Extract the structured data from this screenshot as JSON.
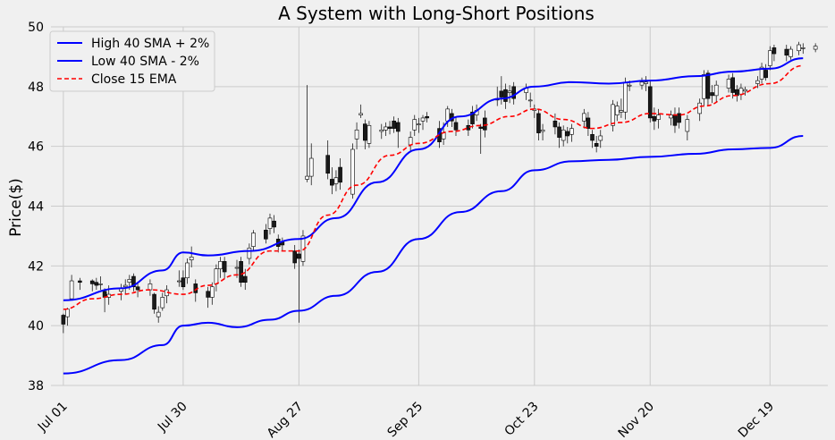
{
  "chart_data": {
    "type": "candlestick",
    "title": "A System with Long-Short Positions",
    "xlabel": "",
    "ylabel": "Price($)",
    "ylim": [
      38,
      50
    ],
    "yticks": [
      38,
      40,
      42,
      44,
      46,
      48,
      50
    ],
    "xlim": [
      "Jun 28",
      "Jan 02"
    ],
    "xticks": [
      "Jul 01",
      "Jul 30",
      "Aug 27",
      "Sep 25",
      "Oct 23",
      "Nov 20",
      "Dec 19"
    ],
    "xtick_dates": [
      "2019-07-01",
      "2019-07-30",
      "2019-08-27",
      "2019-09-25",
      "2019-10-23",
      "2019-11-20",
      "2019-12-19"
    ],
    "grid": true,
    "legend": {
      "placement": "top-left"
    },
    "colors": {
      "high_sma": "#0000ff",
      "low_sma": "#0000ff",
      "ema": "#ff0000",
      "down": "#1a1a1a",
      "up": "#ffffff",
      "grid": "#cbcbcb",
      "background": "#f0f0f0"
    },
    "series": [
      {
        "name": "High 40 SMA + 2%",
        "style": "solid",
        "points": [
          [
            "2019-07-01",
            40.85
          ],
          [
            "2019-07-15",
            41.25
          ],
          [
            "2019-07-25",
            41.85
          ],
          [
            "2019-07-30",
            42.45
          ],
          [
            "2019-08-05",
            42.35
          ],
          [
            "2019-08-15",
            42.5
          ],
          [
            "2019-08-27",
            42.9
          ],
          [
            "2019-09-05",
            43.6
          ],
          [
            "2019-09-15",
            44.8
          ],
          [
            "2019-09-25",
            45.9
          ],
          [
            "2019-10-05",
            47.0
          ],
          [
            "2019-10-15",
            47.6
          ],
          [
            "2019-10-23",
            48.0
          ],
          [
            "2019-11-01",
            48.15
          ],
          [
            "2019-11-10",
            48.1
          ],
          [
            "2019-11-20",
            48.2
          ],
          [
            "2019-12-01",
            48.35
          ],
          [
            "2019-12-10",
            48.5
          ],
          [
            "2019-12-19",
            48.6
          ],
          [
            "2019-12-27",
            48.95
          ]
        ]
      },
      {
        "name": "Low 40 SMA - 2%",
        "style": "solid",
        "points": [
          [
            "2019-07-01",
            38.4
          ],
          [
            "2019-07-15",
            38.85
          ],
          [
            "2019-07-25",
            39.35
          ],
          [
            "2019-07-30",
            40.0
          ],
          [
            "2019-08-05",
            40.1
          ],
          [
            "2019-08-12",
            39.95
          ],
          [
            "2019-08-20",
            40.2
          ],
          [
            "2019-08-27",
            40.5
          ],
          [
            "2019-09-05",
            41.0
          ],
          [
            "2019-09-15",
            41.8
          ],
          [
            "2019-09-25",
            42.9
          ],
          [
            "2019-10-05",
            43.8
          ],
          [
            "2019-10-15",
            44.5
          ],
          [
            "2019-10-23",
            45.2
          ],
          [
            "2019-11-01",
            45.5
          ],
          [
            "2019-11-10",
            45.55
          ],
          [
            "2019-11-20",
            45.65
          ],
          [
            "2019-12-01",
            45.75
          ],
          [
            "2019-12-10",
            45.9
          ],
          [
            "2019-12-19",
            45.95
          ],
          [
            "2019-12-27",
            46.35
          ]
        ]
      },
      {
        "name": "Close 15 EMA",
        "style": "dashed",
        "points": [
          [
            "2019-07-01",
            40.55
          ],
          [
            "2019-07-08",
            40.9
          ],
          [
            "2019-07-15",
            41.05
          ],
          [
            "2019-07-22",
            41.2
          ],
          [
            "2019-07-30",
            41.05
          ],
          [
            "2019-08-05",
            41.35
          ],
          [
            "2019-08-12",
            41.7
          ],
          [
            "2019-08-20",
            42.5
          ],
          [
            "2019-08-27",
            42.5
          ],
          [
            "2019-09-03",
            43.7
          ],
          [
            "2019-09-10",
            44.7
          ],
          [
            "2019-09-18",
            45.7
          ],
          [
            "2019-09-25",
            46.1
          ],
          [
            "2019-10-03",
            46.5
          ],
          [
            "2019-10-10",
            46.7
          ],
          [
            "2019-10-17",
            47.0
          ],
          [
            "2019-10-23",
            47.25
          ],
          [
            "2019-10-30",
            46.9
          ],
          [
            "2019-11-06",
            46.6
          ],
          [
            "2019-11-13",
            46.8
          ],
          [
            "2019-11-20",
            47.1
          ],
          [
            "2019-11-27",
            47.05
          ],
          [
            "2019-12-03",
            47.35
          ],
          [
            "2019-12-10",
            47.7
          ],
          [
            "2019-12-19",
            48.1
          ],
          [
            "2019-12-27",
            48.7
          ]
        ]
      }
    ],
    "candles": [
      [
        "2019-07-01",
        40.35,
        40.05,
        40.4,
        39.75
      ],
      [
        "2019-07-02",
        40.3,
        40.55,
        40.6,
        40.0
      ],
      [
        "2019-07-03",
        40.9,
        41.5,
        41.7,
        40.85
      ],
      [
        "2019-07-05",
        41.5,
        41.45,
        41.6,
        41.2
      ],
      [
        "2019-07-08",
        41.5,
        41.4,
        41.55,
        41.15
      ],
      [
        "2019-07-09",
        41.45,
        41.35,
        41.6,
        41.2
      ],
      [
        "2019-07-10",
        41.4,
        41.4,
        41.65,
        41.2
      ],
      [
        "2019-07-11",
        41.15,
        40.95,
        41.25,
        40.45
      ],
      [
        "2019-07-12",
        40.95,
        41.05,
        41.35,
        40.7
      ],
      [
        "2019-07-15",
        41.15,
        41.25,
        41.4,
        40.85
      ],
      [
        "2019-07-16",
        41.3,
        41.35,
        41.55,
        41.05
      ],
      [
        "2019-07-17",
        41.45,
        41.55,
        41.7,
        41.2
      ],
      [
        "2019-07-18",
        41.65,
        41.3,
        41.75,
        41.15
      ],
      [
        "2019-07-19",
        41.3,
        41.2,
        41.45,
        40.95
      ],
      [
        "2019-07-22",
        41.2,
        41.4,
        41.55,
        41.0
      ],
      [
        "2019-07-23",
        41.05,
        40.55,
        41.1,
        40.4
      ],
      [
        "2019-07-24",
        40.3,
        40.45,
        40.65,
        40.1
      ],
      [
        "2019-07-25",
        40.6,
        40.95,
        41.1,
        40.5
      ],
      [
        "2019-07-26",
        41.0,
        41.2,
        41.35,
        40.75
      ],
      [
        "2019-07-29",
        41.5,
        41.5,
        41.85,
        41.3
      ],
      [
        "2019-07-30",
        41.6,
        41.3,
        41.85,
        41.2
      ],
      [
        "2019-07-31",
        41.6,
        42.1,
        42.25,
        41.4
      ],
      [
        "2019-08-01",
        42.2,
        42.3,
        42.65,
        41.95
      ],
      [
        "2019-08-02",
        41.4,
        41.1,
        41.55,
        40.8
      ],
      [
        "2019-08-05",
        41.15,
        40.95,
        41.3,
        40.6
      ],
      [
        "2019-08-06",
        40.95,
        41.3,
        41.45,
        40.7
      ],
      [
        "2019-08-07",
        41.4,
        41.9,
        42.05,
        41.15
      ],
      [
        "2019-08-08",
        41.9,
        42.15,
        42.3,
        41.6
      ],
      [
        "2019-08-09",
        42.15,
        41.8,
        42.3,
        41.55
      ],
      [
        "2019-08-12",
        41.95,
        41.95,
        42.2,
        41.6
      ],
      [
        "2019-08-13",
        42.15,
        41.45,
        42.3,
        41.3
      ],
      [
        "2019-08-14",
        41.65,
        41.45,
        41.9,
        41.2
      ],
      [
        "2019-08-15",
        42.25,
        42.6,
        42.75,
        42.05
      ],
      [
        "2019-08-16",
        42.65,
        43.1,
        43.2,
        42.5
      ],
      [
        "2019-08-19",
        43.2,
        42.9,
        43.4,
        42.75
      ],
      [
        "2019-08-20",
        43.25,
        43.6,
        43.75,
        43.05
      ],
      [
        "2019-08-21",
        43.5,
        43.3,
        43.7,
        43.1
      ],
      [
        "2019-08-22",
        42.9,
        42.65,
        43.05,
        42.45
      ],
      [
        "2019-08-23",
        42.8,
        42.7,
        42.95,
        42.5
      ],
      [
        "2019-08-26",
        42.5,
        42.1,
        42.7,
        41.9
      ],
      [
        "2019-08-27",
        42.4,
        42.25,
        42.55,
        40.1
      ],
      [
        "2019-08-28",
        42.15,
        43.0,
        43.2,
        42.0
      ],
      [
        "2019-08-29",
        44.9,
        45.0,
        48.05,
        44.8
      ],
      [
        "2019-08-30",
        45.0,
        45.6,
        46.1,
        44.7
      ],
      [
        "2019-09-03",
        45.7,
        45.1,
        46.2,
        44.9
      ],
      [
        "2019-09-04",
        44.9,
        44.7,
        45.3,
        44.4
      ],
      [
        "2019-09-05",
        44.75,
        44.95,
        45.2,
        44.5
      ],
      [
        "2019-09-06",
        45.3,
        44.8,
        45.6,
        44.55
      ],
      [
        "2019-09-09",
        44.4,
        45.9,
        46.1,
        44.25
      ],
      [
        "2019-09-10",
        46.25,
        46.55,
        46.8,
        45.9
      ],
      [
        "2019-09-11",
        47.05,
        47.1,
        47.4,
        46.95
      ],
      [
        "2019-09-12",
        46.75,
        46.2,
        46.9,
        45.9
      ],
      [
        "2019-09-13",
        46.1,
        46.7,
        46.85,
        45.95
      ],
      [
        "2019-09-16",
        46.5,
        46.55,
        46.75,
        46.25
      ],
      [
        "2019-09-17",
        46.55,
        46.65,
        46.8,
        46.35
      ],
      [
        "2019-09-18",
        46.65,
        46.6,
        46.85,
        46.4
      ],
      [
        "2019-09-19",
        46.85,
        46.6,
        47.0,
        46.45
      ],
      [
        "2019-09-20",
        46.8,
        46.5,
        46.95,
        45.95
      ],
      [
        "2019-09-23",
        46.05,
        46.3,
        46.5,
        45.85
      ],
      [
        "2019-09-24",
        46.55,
        46.9,
        47.05,
        46.35
      ],
      [
        "2019-09-25",
        46.75,
        46.75,
        46.95,
        46.45
      ],
      [
        "2019-09-26",
        46.85,
        46.95,
        47.05,
        46.55
      ],
      [
        "2019-09-27",
        47.0,
        46.95,
        47.15,
        46.8
      ],
      [
        "2019-09-30",
        46.6,
        46.15,
        46.85,
        45.95
      ],
      [
        "2019-10-01",
        46.25,
        46.45,
        46.8,
        46.05
      ],
      [
        "2019-10-02",
        46.85,
        47.25,
        47.35,
        46.65
      ],
      [
        "2019-10-03",
        47.1,
        46.85,
        47.25,
        46.65
      ],
      [
        "2019-10-04",
        46.8,
        46.55,
        47.0,
        46.35
      ],
      [
        "2019-10-07",
        46.7,
        46.55,
        46.9,
        46.35
      ],
      [
        "2019-10-08",
        47.15,
        46.75,
        47.35,
        46.6
      ],
      [
        "2019-10-09",
        47.05,
        47.2,
        47.4,
        46.85
      ],
      [
        "2019-10-10",
        46.65,
        46.6,
        46.75,
        45.75
      ],
      [
        "2019-10-11",
        46.95,
        46.55,
        47.2,
        46.3
      ],
      [
        "2019-10-14",
        47.55,
        47.6,
        48.0,
        47.35
      ],
      [
        "2019-10-15",
        47.85,
        47.65,
        48.35,
        47.4
      ],
      [
        "2019-10-16",
        47.9,
        47.5,
        48.1,
        47.25
      ],
      [
        "2019-10-17",
        47.8,
        47.85,
        48.05,
        47.45
      ],
      [
        "2019-10-18",
        48.0,
        47.6,
        48.15,
        47.4
      ],
      [
        "2019-10-21",
        47.8,
        47.95,
        48.1,
        47.55
      ],
      [
        "2019-10-22",
        47.55,
        47.55,
        47.8,
        47.3
      ],
      [
        "2019-10-23",
        47.2,
        47.25,
        47.4,
        46.95
      ],
      [
        "2019-10-24",
        47.1,
        46.45,
        47.25,
        46.2
      ],
      [
        "2019-10-25",
        46.5,
        46.55,
        46.75,
        46.2
      ],
      [
        "2019-10-28",
        46.85,
        46.65,
        47.1,
        46.4
      ],
      [
        "2019-10-29",
        46.65,
        46.3,
        46.8,
        45.95
      ],
      [
        "2019-10-30",
        46.2,
        46.55,
        46.7,
        46.0
      ],
      [
        "2019-10-31",
        46.5,
        46.35,
        46.65,
        46.1
      ],
      [
        "2019-11-01",
        46.4,
        46.6,
        46.75,
        46.15
      ],
      [
        "2019-11-04",
        46.85,
        47.1,
        47.25,
        46.6
      ],
      [
        "2019-11-05",
        46.95,
        46.6,
        47.15,
        46.35
      ],
      [
        "2019-11-06",
        46.4,
        46.2,
        46.55,
        45.95
      ],
      [
        "2019-11-07",
        46.1,
        46.0,
        46.35,
        45.8
      ],
      [
        "2019-11-08",
        46.2,
        46.35,
        46.55,
        45.95
      ],
      [
        "2019-11-11",
        46.7,
        47.4,
        47.55,
        46.5
      ],
      [
        "2019-11-12",
        47.05,
        47.35,
        47.5,
        46.85
      ],
      [
        "2019-11-13",
        47.15,
        47.2,
        47.6,
        46.95
      ],
      [
        "2019-11-14",
        47.15,
        48.15,
        48.3,
        46.9
      ],
      [
        "2019-11-15",
        48.05,
        48.05,
        48.2,
        47.85
      ],
      [
        "2019-11-18",
        48.05,
        48.15,
        48.3,
        47.9
      ],
      [
        "2019-11-19",
        48.1,
        48.15,
        48.35,
        47.85
      ],
      [
        "2019-11-20",
        48.0,
        46.95,
        48.2,
        46.8
      ],
      [
        "2019-11-21",
        47.0,
        46.85,
        47.3,
        46.55
      ],
      [
        "2019-11-22",
        46.9,
        47.05,
        47.25,
        46.6
      ],
      [
        "2019-11-25",
        46.95,
        47.05,
        47.2,
        46.7
      ],
      [
        "2019-11-26",
        47.05,
        46.7,
        47.3,
        46.45
      ],
      [
        "2019-11-27",
        47.1,
        46.8,
        47.3,
        46.6
      ],
      [
        "2019-11-29",
        46.5,
        46.9,
        47.05,
        46.2
      ],
      [
        "2019-12-02",
        47.1,
        47.45,
        47.6,
        46.85
      ],
      [
        "2019-12-03",
        47.6,
        48.4,
        48.55,
        47.35
      ],
      [
        "2019-12-04",
        48.45,
        47.6,
        48.55,
        47.35
      ],
      [
        "2019-12-05",
        47.8,
        47.7,
        48.05,
        47.45
      ],
      [
        "2019-12-06",
        47.7,
        48.05,
        48.2,
        47.5
      ],
      [
        "2019-12-09",
        47.95,
        48.25,
        48.4,
        47.8
      ],
      [
        "2019-12-10",
        48.3,
        47.8,
        48.45,
        47.6
      ],
      [
        "2019-12-11",
        47.9,
        47.7,
        48.05,
        47.5
      ],
      [
        "2019-12-12",
        47.75,
        47.95,
        48.1,
        47.55
      ],
      [
        "2019-12-13",
        47.85,
        47.9,
        48.0,
        47.7
      ],
      [
        "2019-12-16",
        48.1,
        48.2,
        48.35,
        47.95
      ],
      [
        "2019-12-17",
        48.25,
        48.65,
        48.8,
        48.1
      ],
      [
        "2019-12-18",
        48.55,
        48.3,
        48.75,
        48.2
      ],
      [
        "2019-12-19",
        48.7,
        49.2,
        49.35,
        48.55
      ],
      [
        "2019-12-20",
        49.3,
        49.1,
        49.4,
        48.85
      ],
      [
        "2019-12-23",
        49.25,
        49.05,
        49.4,
        48.85
      ],
      [
        "2019-12-24",
        49.0,
        49.25,
        49.35,
        48.9
      ],
      [
        "2019-12-26",
        49.2,
        49.4,
        49.5,
        49.05
      ],
      [
        "2019-12-27",
        49.3,
        49.3,
        49.45,
        49.1
      ],
      [
        "2019-12-30",
        49.25,
        49.35,
        49.45,
        49.15
      ]
    ]
  }
}
